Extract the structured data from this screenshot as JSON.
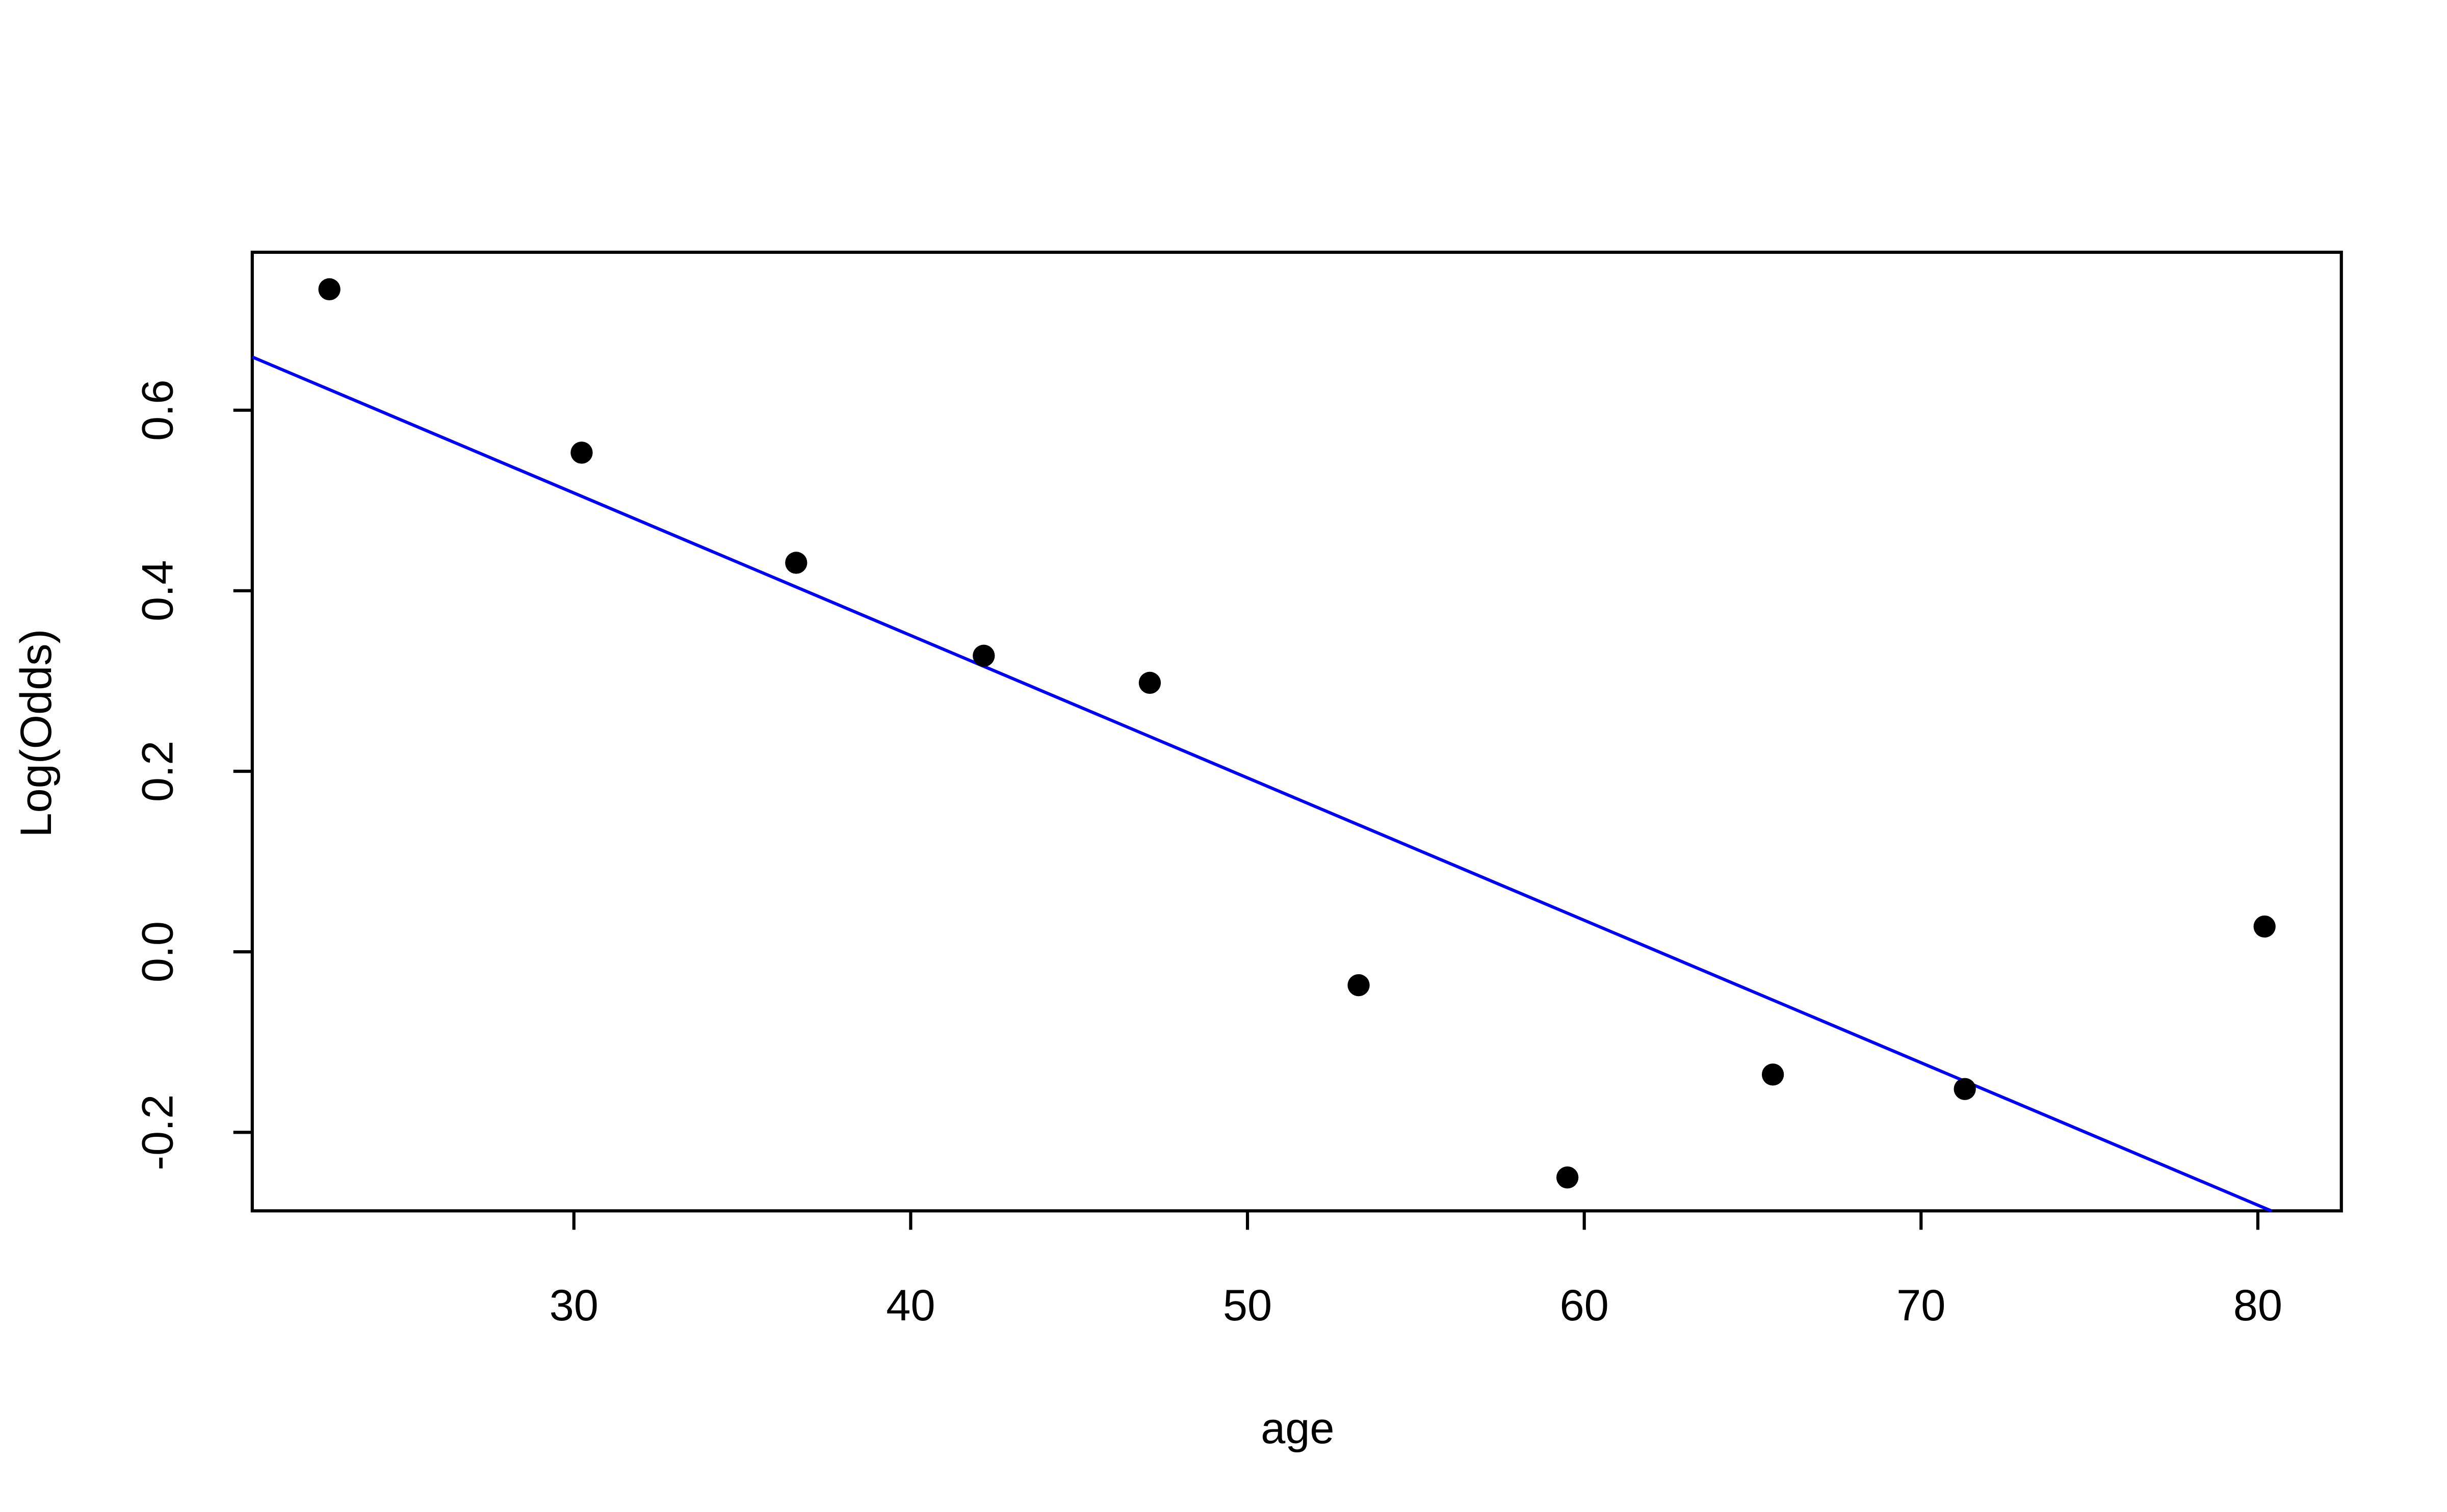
{
  "chart_data": {
    "type": "scatter",
    "x_label": "age",
    "y_label": "Log(Odds)",
    "x": [
      22.74,
      30.23,
      36.6,
      42.17,
      47.1,
      53.3,
      59.5,
      65.6,
      71.3,
      80.2
    ],
    "values": [
      0.734,
      0.553,
      0.431,
      0.328,
      0.298,
      -0.037,
      -0.25,
      -0.136,
      -0.152,
      0.028
    ],
    "color": "#000000",
    "fit_line": {
      "x": [
        20.45,
        80.4
      ],
      "values": [
        0.659,
        -0.287
      ],
      "color": "#0000ff"
    },
    "xlim": [
      20.45,
      82.48
    ],
    "ylim": [
      -0.287,
      0.775
    ],
    "xticks": [
      30,
      40,
      50,
      60,
      70,
      80
    ],
    "yticks": [
      {
        "value": -0.2,
        "label": "-0.2"
      },
      {
        "value": 0,
        "label": "0.0"
      },
      0.2,
      0.4,
      0.6
    ],
    "grid": false
  }
}
